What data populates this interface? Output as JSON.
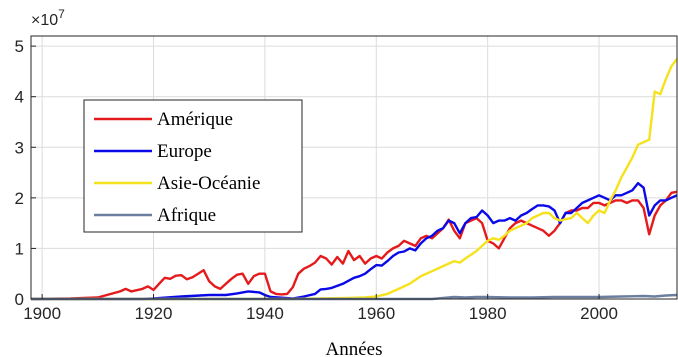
{
  "chart_data": {
    "type": "line",
    "title": "",
    "xlabel": "Années",
    "ylabel": "",
    "y_exponent_label": "×10",
    "y_exponent_power": "7",
    "xlim": [
      1898,
      2014
    ],
    "ylim": [
      0,
      52000000
    ],
    "x_ticks": [
      1900,
      1920,
      1940,
      1960,
      1980,
      2000
    ],
    "x_tick_labels": [
      "1900",
      "1920",
      "1940",
      "1960",
      "1980",
      "2000"
    ],
    "y_ticks": [
      0,
      10000000,
      20000000,
      30000000,
      40000000,
      50000000
    ],
    "y_tick_labels": [
      "0",
      "1",
      "2",
      "3",
      "4",
      "5"
    ],
    "grid": true,
    "legend_position": "left-middle",
    "series": [
      {
        "name": "Amérique",
        "color": "#e41a1c",
        "points": [
          [
            1898,
            0
          ],
          [
            1905,
            100000
          ],
          [
            1910,
            300000
          ],
          [
            1914,
            1500000
          ],
          [
            1915,
            2000000
          ],
          [
            1916,
            1500000
          ],
          [
            1918,
            2000000
          ],
          [
            1919,
            2500000
          ],
          [
            1920,
            1800000
          ],
          [
            1921,
            3000000
          ],
          [
            1922,
            4200000
          ],
          [
            1923,
            4000000
          ],
          [
            1924,
            4600000
          ],
          [
            1925,
            4700000
          ],
          [
            1926,
            3900000
          ],
          [
            1927,
            4300000
          ],
          [
            1928,
            5000000
          ],
          [
            1929,
            5700000
          ],
          [
            1930,
            3500000
          ],
          [
            1931,
            2500000
          ],
          [
            1932,
            2000000
          ],
          [
            1933,
            3000000
          ],
          [
            1934,
            4000000
          ],
          [
            1935,
            4800000
          ],
          [
            1936,
            5000000
          ],
          [
            1937,
            3000000
          ],
          [
            1938,
            4500000
          ],
          [
            1939,
            5000000
          ],
          [
            1940,
            5000000
          ],
          [
            1941,
            1500000
          ],
          [
            1942,
            1000000
          ],
          [
            1943,
            900000
          ],
          [
            1944,
            1000000
          ],
          [
            1945,
            2300000
          ],
          [
            1946,
            5000000
          ],
          [
            1947,
            6000000
          ],
          [
            1948,
            6500000
          ],
          [
            1949,
            7200000
          ],
          [
            1950,
            8500000
          ],
          [
            1951,
            8000000
          ],
          [
            1952,
            6800000
          ],
          [
            1953,
            8300000
          ],
          [
            1954,
            7000000
          ],
          [
            1955,
            9500000
          ],
          [
            1956,
            7700000
          ],
          [
            1957,
            8500000
          ],
          [
            1958,
            7000000
          ],
          [
            1959,
            8000000
          ],
          [
            1960,
            8500000
          ],
          [
            1961,
            8000000
          ],
          [
            1962,
            9200000
          ],
          [
            1963,
            10000000
          ],
          [
            1964,
            10500000
          ],
          [
            1965,
            11500000
          ],
          [
            1966,
            11000000
          ],
          [
            1967,
            10500000
          ],
          [
            1968,
            12000000
          ],
          [
            1969,
            12500000
          ],
          [
            1970,
            12000000
          ],
          [
            1971,
            13000000
          ],
          [
            1972,
            14000000
          ],
          [
            1973,
            15700000
          ],
          [
            1974,
            13500000
          ],
          [
            1975,
            12000000
          ],
          [
            1976,
            15000000
          ],
          [
            1977,
            15500000
          ],
          [
            1978,
            16000000
          ],
          [
            1979,
            15000000
          ],
          [
            1980,
            11500000
          ],
          [
            1981,
            11000000
          ],
          [
            1982,
            10000000
          ],
          [
            1983,
            12000000
          ],
          [
            1984,
            14000000
          ],
          [
            1985,
            15000000
          ],
          [
            1986,
            15500000
          ],
          [
            1987,
            15000000
          ],
          [
            1988,
            14500000
          ],
          [
            1989,
            14000000
          ],
          [
            1990,
            13500000
          ],
          [
            1991,
            12500000
          ],
          [
            1992,
            13500000
          ],
          [
            1993,
            15000000
          ],
          [
            1994,
            17000000
          ],
          [
            1995,
            17500000
          ],
          [
            1996,
            17500000
          ],
          [
            1997,
            18000000
          ],
          [
            1998,
            18000000
          ],
          [
            1999,
            19000000
          ],
          [
            2000,
            19000000
          ],
          [
            2001,
            18500000
          ],
          [
            2002,
            19000000
          ],
          [
            2003,
            19500000
          ],
          [
            2004,
            19500000
          ],
          [
            2005,
            19000000
          ],
          [
            2006,
            19500000
          ],
          [
            2007,
            19500000
          ],
          [
            2008,
            18000000
          ],
          [
            2009,
            12800000
          ],
          [
            2010,
            16500000
          ],
          [
            2011,
            18500000
          ],
          [
            2012,
            19500000
          ],
          [
            2013,
            21000000
          ],
          [
            2014,
            21200000
          ]
        ]
      },
      {
        "name": "Europe",
        "color": "#0a0ae8",
        "points": [
          [
            1898,
            0
          ],
          [
            1918,
            0
          ],
          [
            1920,
            100000
          ],
          [
            1925,
            500000
          ],
          [
            1930,
            800000
          ],
          [
            1933,
            800000
          ],
          [
            1935,
            1100000
          ],
          [
            1937,
            1500000
          ],
          [
            1939,
            1300000
          ],
          [
            1940,
            800000
          ],
          [
            1941,
            400000
          ],
          [
            1945,
            100000
          ],
          [
            1947,
            500000
          ],
          [
            1949,
            1000000
          ],
          [
            1950,
            1900000
          ],
          [
            1951,
            2000000
          ],
          [
            1952,
            2200000
          ],
          [
            1954,
            3000000
          ],
          [
            1955,
            3600000
          ],
          [
            1956,
            4200000
          ],
          [
            1957,
            4500000
          ],
          [
            1958,
            5000000
          ],
          [
            1959,
            5900000
          ],
          [
            1960,
            6700000
          ],
          [
            1961,
            6600000
          ],
          [
            1962,
            7500000
          ],
          [
            1963,
            8500000
          ],
          [
            1964,
            9200000
          ],
          [
            1965,
            9400000
          ],
          [
            1966,
            10000000
          ],
          [
            1967,
            9600000
          ],
          [
            1968,
            11000000
          ],
          [
            1969,
            12000000
          ],
          [
            1970,
            12500000
          ],
          [
            1971,
            13500000
          ],
          [
            1972,
            14000000
          ],
          [
            1973,
            15500000
          ],
          [
            1974,
            15000000
          ],
          [
            1975,
            13000000
          ],
          [
            1976,
            15000000
          ],
          [
            1977,
            16000000
          ],
          [
            1978,
            16200000
          ],
          [
            1979,
            17500000
          ],
          [
            1980,
            16500000
          ],
          [
            1981,
            15000000
          ],
          [
            1982,
            15500000
          ],
          [
            1983,
            15500000
          ],
          [
            1984,
            16000000
          ],
          [
            1985,
            15500000
          ],
          [
            1986,
            16500000
          ],
          [
            1987,
            17000000
          ],
          [
            1988,
            17800000
          ],
          [
            1989,
            18500000
          ],
          [
            1990,
            18500000
          ],
          [
            1991,
            18300000
          ],
          [
            1992,
            17500000
          ],
          [
            1993,
            15000000
          ],
          [
            1994,
            17000000
          ],
          [
            1995,
            17000000
          ],
          [
            1996,
            18000000
          ],
          [
            1997,
            19000000
          ],
          [
            1998,
            19500000
          ],
          [
            1999,
            20000000
          ],
          [
            2000,
            20500000
          ],
          [
            2001,
            20000000
          ],
          [
            2002,
            19500000
          ],
          [
            2003,
            20500000
          ],
          [
            2004,
            20500000
          ],
          [
            2005,
            21000000
          ],
          [
            2006,
            21500000
          ],
          [
            2007,
            22900000
          ],
          [
            2008,
            22000000
          ],
          [
            2009,
            16500000
          ],
          [
            2010,
            18500000
          ],
          [
            2011,
            19500000
          ],
          [
            2012,
            19500000
          ],
          [
            2013,
            20000000
          ],
          [
            2014,
            20500000
          ]
        ]
      },
      {
        "name": "Asie-Océanie",
        "color": "#f5e21c",
        "points": [
          [
            1898,
            0
          ],
          [
            1945,
            0
          ],
          [
            1955,
            200000
          ],
          [
            1958,
            300000
          ],
          [
            1960,
            500000
          ],
          [
            1962,
            1000000
          ],
          [
            1964,
            2000000
          ],
          [
            1966,
            3000000
          ],
          [
            1968,
            4500000
          ],
          [
            1970,
            5500000
          ],
          [
            1972,
            6500000
          ],
          [
            1974,
            7500000
          ],
          [
            1975,
            7200000
          ],
          [
            1976,
            8000000
          ],
          [
            1978,
            9500000
          ],
          [
            1980,
            11500000
          ],
          [
            1981,
            12000000
          ],
          [
            1982,
            11700000
          ],
          [
            1983,
            12500000
          ],
          [
            1984,
            13500000
          ],
          [
            1985,
            14000000
          ],
          [
            1986,
            14500000
          ],
          [
            1987,
            15000000
          ],
          [
            1988,
            16000000
          ],
          [
            1989,
            16500000
          ],
          [
            1990,
            17000000
          ],
          [
            1991,
            17000000
          ],
          [
            1992,
            16000000
          ],
          [
            1993,
            15500000
          ],
          [
            1994,
            15800000
          ],
          [
            1995,
            16000000
          ],
          [
            1996,
            17000000
          ],
          [
            1997,
            16000000
          ],
          [
            1998,
            15000000
          ],
          [
            1999,
            16500000
          ],
          [
            2000,
            17500000
          ],
          [
            2001,
            17000000
          ],
          [
            2002,
            19500000
          ],
          [
            2003,
            21500000
          ],
          [
            2004,
            24000000
          ],
          [
            2005,
            26000000
          ],
          [
            2006,
            28000000
          ],
          [
            2007,
            30500000
          ],
          [
            2008,
            31000000
          ],
          [
            2009,
            31500000
          ],
          [
            2010,
            41000000
          ],
          [
            2011,
            40500000
          ],
          [
            2012,
            43500000
          ],
          [
            2013,
            46000000
          ],
          [
            2014,
            47500000
          ]
        ]
      },
      {
        "name": "Afrique",
        "color": "#6b7ea0",
        "points": [
          [
            1898,
            0
          ],
          [
            1970,
            0
          ],
          [
            1972,
            200000
          ],
          [
            1974,
            400000
          ],
          [
            1976,
            300000
          ],
          [
            1978,
            400000
          ],
          [
            1980,
            400000
          ],
          [
            1984,
            300000
          ],
          [
            1988,
            300000
          ],
          [
            1992,
            400000
          ],
          [
            1996,
            400000
          ],
          [
            2000,
            400000
          ],
          [
            2004,
            500000
          ],
          [
            2008,
            600000
          ],
          [
            2010,
            500000
          ],
          [
            2012,
            700000
          ],
          [
            2014,
            800000
          ]
        ]
      }
    ]
  }
}
